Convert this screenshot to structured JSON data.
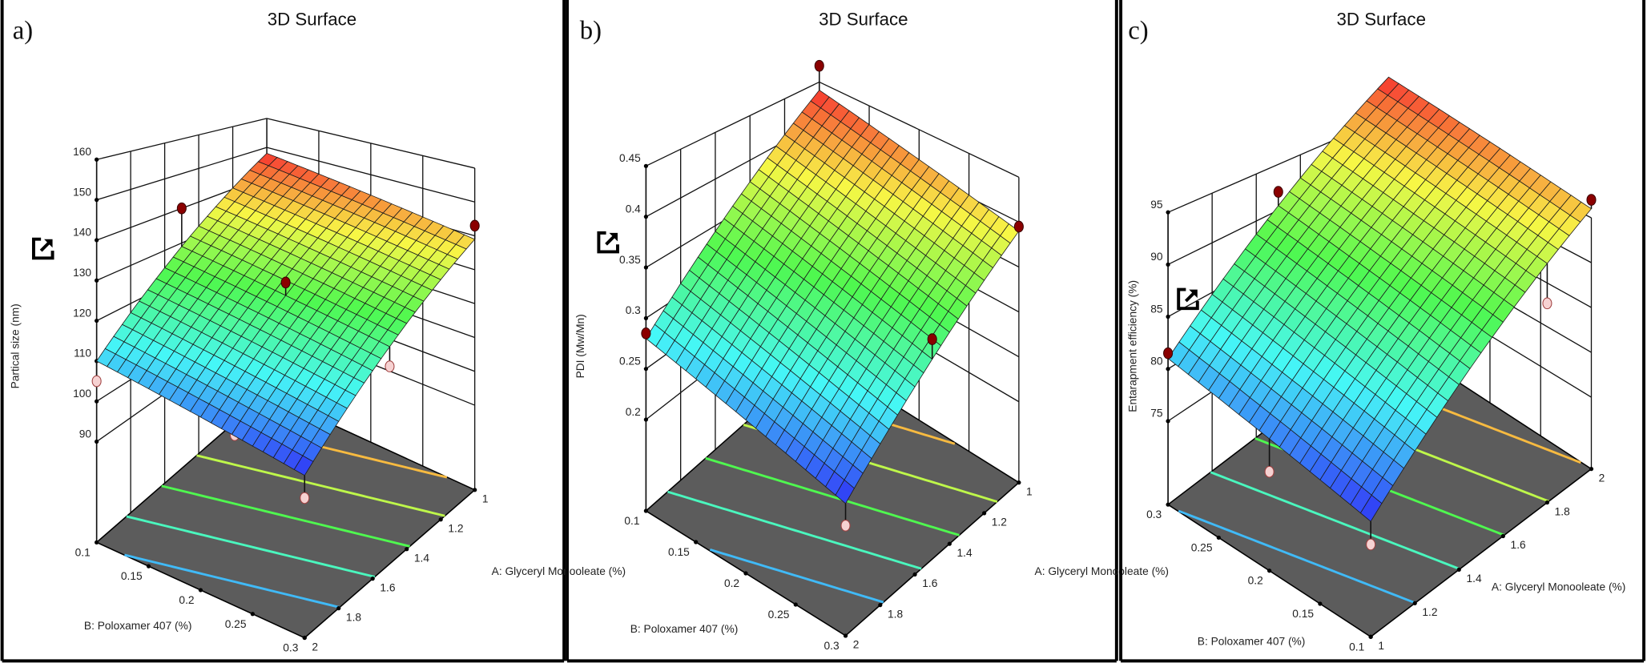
{
  "chart_data": [
    {
      "type": "surface",
      "panel_label": "a)",
      "title": "3D Surface",
      "xlabel": "A: Glyceryl Monooleate (%)",
      "ylabel": "B: Poloxamer 407 (%)",
      "zlabel": "Partical size (nm)",
      "a_ticks": [
        2,
        1.8,
        1.6,
        1.4,
        1.2,
        1
      ],
      "b_ticks": [
        0.1,
        0.15,
        0.2,
        0.25,
        0.3
      ],
      "z_ticks": [
        90,
        100,
        110,
        120,
        130,
        140,
        150,
        160
      ],
      "zlim": [
        65,
        160
      ],
      "surface_corners": [
        {
          "A": 2,
          "B": 0.1,
          "z": 110
        },
        {
          "A": 2,
          "B": 0.3,
          "z": 101
        },
        {
          "A": 1,
          "B": 0.3,
          "z": 139
        },
        {
          "A": 1,
          "B": 0.1,
          "z": 148
        }
      ],
      "design_points": [
        {
          "A": 1.5,
          "B": 0.1,
          "z": 140
        },
        {
          "A": 1.5,
          "B": 0.2,
          "z": 128
        },
        {
          "A": 1,
          "B": 0.3,
          "z": 143
        },
        {
          "A": 2,
          "B": 0.1,
          "z": 105
        },
        {
          "A": 1.8,
          "B": 0.2,
          "z": 96
        },
        {
          "A": 1.5,
          "B": 0.3,
          "z": 115
        },
        {
          "A": 2,
          "B": 0.3,
          "z": 96
        }
      ],
      "grid": true,
      "colormap": "rainbow (blue low → red high)"
    },
    {
      "type": "surface",
      "panel_label": "b)",
      "title": "3D Surface",
      "xlabel": "A: Glyceryl Monooleate (%)",
      "ylabel": "B: Poloxamer 407 (%)",
      "zlabel": "PDI (Mw/Mn)",
      "a_ticks": [
        2,
        1.8,
        1.6,
        1.4,
        1.2,
        1
      ],
      "b_ticks": [
        0.1,
        0.15,
        0.2,
        0.25,
        0.3
      ],
      "z_ticks": [
        0.2,
        0.25,
        0.3,
        0.35,
        0.4,
        0.45
      ],
      "zlim": [
        0.11,
        0.45
      ],
      "surface_corners": [
        {
          "A": 2,
          "B": 0.1,
          "z": 0.28
        },
        {
          "A": 2,
          "B": 0.3,
          "z": 0.23
        },
        {
          "A": 1,
          "B": 0.3,
          "z": 0.39
        },
        {
          "A": 1,
          "B": 0.1,
          "z": 0.44
        }
      ],
      "design_points": [
        {
          "A": 1,
          "B": 0.1,
          "z": 0.47
        },
        {
          "A": 2,
          "B": 0.1,
          "z": 0.285
        },
        {
          "A": 1,
          "B": 0.3,
          "z": 0.395
        },
        {
          "A": 1.8,
          "B": 0.2,
          "z": 0.27
        },
        {
          "A": 1.5,
          "B": 0.3,
          "z": 0.33
        },
        {
          "A": 1.2,
          "B": 0.2,
          "z": 0.37
        },
        {
          "A": 2,
          "B": 0.3,
          "z": 0.21
        }
      ],
      "grid": true,
      "colormap": "rainbow (blue low → red high)"
    },
    {
      "type": "surface",
      "panel_label": "c)",
      "title": "3D Surface",
      "xlabel": "A: Glyceryl Monooleate (%)",
      "ylabel": "B: Poloxamer 407 (%)",
      "zlabel": "Entarapment efficiency (%)",
      "a_ticks": [
        1,
        1.2,
        1.4,
        1.6,
        1.8,
        2
      ],
      "b_ticks": [
        0.3,
        0.25,
        0.2,
        0.15,
        0.1
      ],
      "z_ticks": [
        75,
        80,
        85,
        90,
        95
      ],
      "zlim": [
        67,
        95
      ],
      "surface_corners": [
        {
          "A": 1,
          "B": 0.3,
          "z": 81
        },
        {
          "A": 1,
          "B": 0.1,
          "z": 77
        },
        {
          "A": 2,
          "B": 0.1,
          "z": 96
        },
        {
          "A": 2,
          "B": 0.3,
          "z": 100
        }
      ],
      "design_points": [
        {
          "A": 1.5,
          "B": 0.3,
          "z": 92
        },
        {
          "A": 1,
          "B": 0.3,
          "z": 81.5
        },
        {
          "A": 2,
          "B": 0.1,
          "z": 97
        },
        {
          "A": 1,
          "B": 0.2,
          "z": 76
        },
        {
          "A": 1,
          "B": 0.1,
          "z": 75
        },
        {
          "A": 1.8,
          "B": 0.1,
          "z": 88
        },
        {
          "A": 1.8,
          "B": 0.25,
          "z": 95
        }
      ],
      "grid": true,
      "colormap": "rainbow (blue low → red high)"
    }
  ],
  "colors": {
    "floor": "#5c5c5c",
    "point_above": "#8b0000",
    "point_below": "#f6d2d2",
    "frame": "#000000"
  },
  "icons": [
    "expand-icon"
  ]
}
